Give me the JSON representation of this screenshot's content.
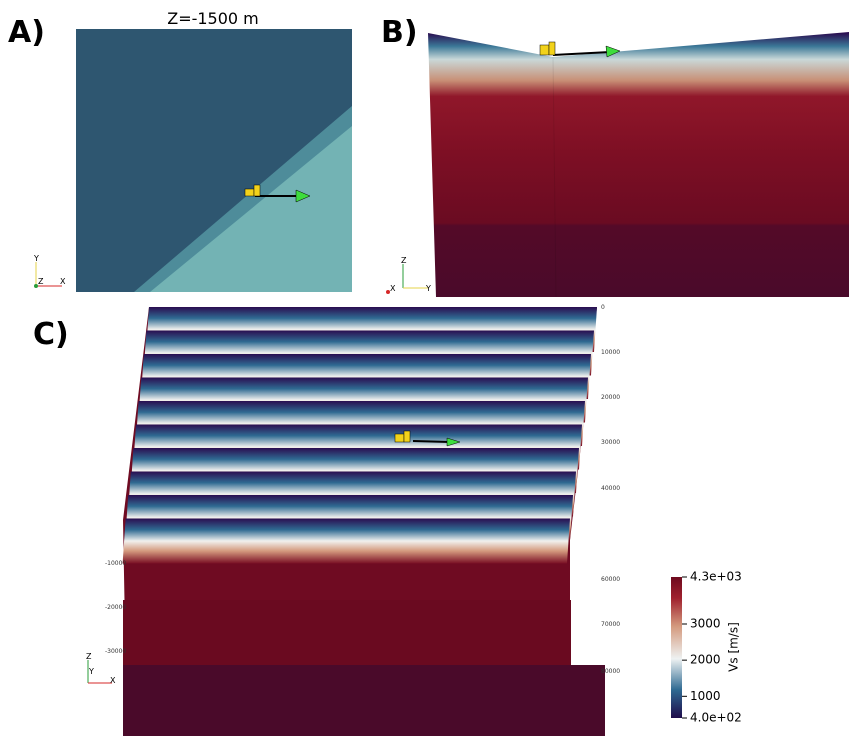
{
  "panel_a": {
    "label": "A)",
    "title": "Z=-1500 m",
    "triad": [
      "Y",
      "Z",
      "X"
    ]
  },
  "panel_b": {
    "label": "B)",
    "triad": [
      "Z",
      "X",
      "Y"
    ]
  },
  "panel_c": {
    "label": "C)",
    "triad": [
      "Z",
      "Y",
      "X"
    ],
    "left_axis": [
      "-10000",
      "-20000",
      "-30000"
    ],
    "right_axis": [
      "0",
      "10000",
      "20000",
      "30000",
      "40000",
      "60000",
      "70000",
      "80000"
    ]
  },
  "colorbar": {
    "title": "Vs [m/s]",
    "lim": [
      400,
      4300
    ],
    "ticks": [
      {
        "value": 4300,
        "label": "4.3e+03"
      },
      3000,
      2000,
      1000,
      {
        "value": 400,
        "label": "4.0e+02"
      }
    ]
  }
}
